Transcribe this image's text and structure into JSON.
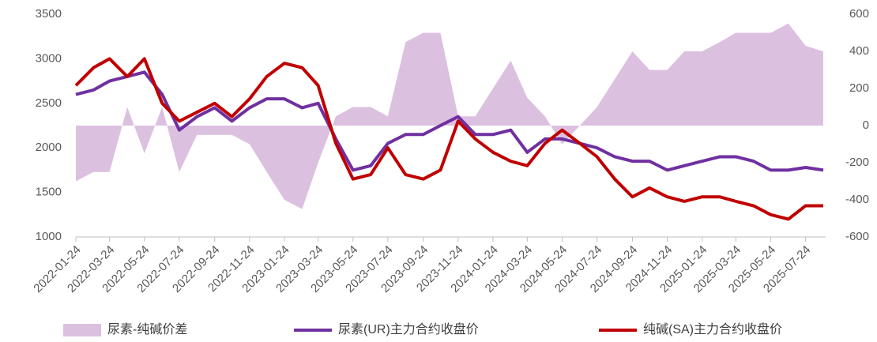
{
  "chart_data": {
    "type": "line",
    "x": [
      "2022-01-24",
      "2022-02-24",
      "2022-03-24",
      "2022-04-24",
      "2022-05-24",
      "2022-06-24",
      "2022-07-24",
      "2022-08-24",
      "2022-09-24",
      "2022-10-24",
      "2022-11-24",
      "2022-12-24",
      "2023-01-24",
      "2023-02-24",
      "2023-03-24",
      "2023-04-24",
      "2023-05-24",
      "2023-06-24",
      "2023-07-24",
      "2023-08-24",
      "2023-09-24",
      "2023-10-24",
      "2023-11-24",
      "2023-12-24",
      "2024-01-24",
      "2024-02-24",
      "2024-03-24",
      "2024-04-24",
      "2024-05-24",
      "2024-06-24",
      "2024-07-24",
      "2024-08-24",
      "2024-09-24",
      "2024-10-24",
      "2024-11-24",
      "2024-12-24",
      "2025-01-24",
      "2025-02-24",
      "2025-03-24",
      "2025-04-24",
      "2025-05-24",
      "2025-06-24",
      "2025-07-24",
      "2025-08-24"
    ],
    "series": [
      {
        "name": "尿素-纯碱价差",
        "type": "area",
        "axis": "y2",
        "color": "#dcc0e0",
        "values": [
          -300,
          -250,
          -250,
          100,
          -150,
          100,
          -250,
          -50,
          -50,
          -50,
          -100,
          -250,
          -400,
          -450,
          -200,
          50,
          100,
          100,
          50,
          450,
          500,
          500,
          50,
          50,
          200,
          350,
          150,
          50,
          -100,
          0,
          100,
          250,
          400,
          300,
          300,
          400,
          400,
          450,
          500,
          500,
          500,
          550,
          430,
          400
        ]
      },
      {
        "name": "尿素(UR)主力合约收盘价",
        "type": "line",
        "color": "#7030a0",
        "values": [
          2600,
          2650,
          2750,
          2800,
          2850,
          2600,
          2200,
          2350,
          2450,
          2300,
          2450,
          2550,
          2550,
          2450,
          2500,
          2100,
          1750,
          1800,
          2050,
          2150,
          2150,
          2250,
          2350,
          2150,
          2150,
          2200,
          1950,
          2100,
          2100,
          2050,
          2000,
          1900,
          1850,
          1850,
          1750,
          1800,
          1850,
          1900,
          1900,
          1850,
          1750,
          1750,
          1780,
          1750
        ]
      },
      {
        "name": "纯碱(SA)主力合约收盘价",
        "type": "line",
        "color": "#c00000",
        "values": [
          2700,
          2900,
          3000,
          2800,
          3000,
          2500,
          2300,
          2400,
          2500,
          2350,
          2550,
          2800,
          2950,
          2900,
          2700,
          2050,
          1650,
          1700,
          2000,
          1700,
          1650,
          1750,
          2300,
          2100,
          1950,
          1850,
          1800,
          2050,
          2200,
          2050,
          1900,
          1650,
          1450,
          1550,
          1450,
          1400,
          1450,
          1450,
          1400,
          1350,
          1250,
          1200,
          1350,
          1350
        ]
      }
    ],
    "xlim": [
      "2022-01-24",
      "2025-08-24"
    ],
    "xticks": [
      "2022-01-24",
      "2022-03-24",
      "2022-05-24",
      "2022-07-24",
      "2022-09-24",
      "2022-11-24",
      "2023-01-24",
      "2023-03-24",
      "2023-05-24",
      "2023-07-24",
      "2023-09-24",
      "2023-11-24",
      "2024-01-24",
      "2024-03-24",
      "2024-05-24",
      "2024-07-24",
      "2024-09-24",
      "2024-11-24",
      "2025-01-24",
      "2025-03-24",
      "2025-05-24",
      "2025-07-24"
    ],
    "ylim": [
      1000,
      3500
    ],
    "yticks": [
      1000,
      1500,
      2000,
      2500,
      3000,
      3500
    ],
    "y2lim": [
      -600,
      600
    ],
    "y2ticks": [
      -600,
      -400,
      -200,
      0,
      200,
      400,
      600
    ],
    "legend": "bottom"
  }
}
